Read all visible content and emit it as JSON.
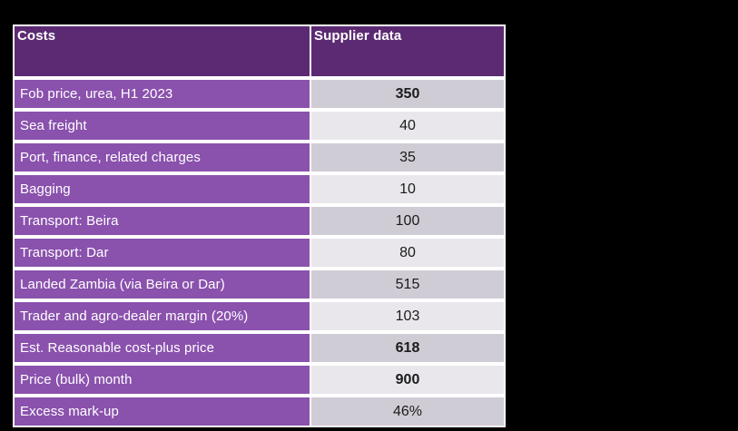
{
  "colors": {
    "page_bg": "#000000",
    "border": "#ffffff",
    "header_bg": "#5c2a72",
    "header_text": "#ffffff",
    "row_label_bg": "#8a51ad",
    "label_text": "#ffffff",
    "value_dark": "#d0ccd5",
    "value_light": "#e9e7ec",
    "value_text": "#1b1b1b"
  },
  "table": {
    "header": {
      "columns": [
        {
          "label": "Costs"
        },
        {
          "label": "Supplier data"
        }
      ]
    },
    "rows": [
      {
        "label": "Fob price, urea, H1 2023",
        "value": "350",
        "value_bold": true,
        "shade": "dark"
      },
      {
        "label": "Sea freight",
        "value": "40",
        "value_bold": false,
        "shade": "light"
      },
      {
        "label": "Port, finance, related charges",
        "value": "35",
        "value_bold": false,
        "shade": "dark"
      },
      {
        "label": "Bagging",
        "value": "10",
        "value_bold": false,
        "shade": "light"
      },
      {
        "label": "Transport: Beira",
        "value": "100",
        "value_bold": false,
        "shade": "dark"
      },
      {
        "label": "Transport: Dar",
        "value": "80",
        "value_bold": false,
        "shade": "light"
      },
      {
        "label": "Landed Zambia (via Beira or Dar)",
        "value": "515",
        "value_bold": false,
        "shade": "dark"
      },
      {
        "label": "Trader and agro-dealer margin (20%)",
        "value": "103",
        "value_bold": false,
        "shade": "light"
      },
      {
        "label": "Est. Reasonable cost-plus price",
        "value": "618",
        "value_bold": true,
        "shade": "dark"
      },
      {
        "label": "Price (bulk) month",
        "value": "900",
        "value_bold": true,
        "shade": "light"
      },
      {
        "label": "Excess mark-up",
        "value": "46%",
        "value_bold": false,
        "shade": "dark"
      }
    ]
  },
  "chart_data": {
    "type": "table",
    "title": "",
    "columns": [
      "Costs",
      "Supplier data"
    ],
    "rows": [
      [
        "Fob price, urea, H1 2023",
        "350"
      ],
      [
        "Sea freight",
        "40"
      ],
      [
        "Port, finance, related charges",
        "35"
      ],
      [
        "Bagging",
        "10"
      ],
      [
        "Transport: Beira",
        "100"
      ],
      [
        "Transport: Dar",
        "80"
      ],
      [
        "Landed Zambia (via Beira or Dar)",
        "515"
      ],
      [
        "Trader and agro-dealer margin (20%)",
        "103"
      ],
      [
        "Est. Reasonable cost-plus price",
        "618"
      ],
      [
        "Price (bulk) month",
        "900"
      ],
      [
        "Excess mark-up",
        "46%"
      ]
    ],
    "notes": "Two-column cost build-up table on black slide background; key figures 350, 618 and 900 rendered bold; value column alternates dark/light lavender-gray row shading."
  }
}
